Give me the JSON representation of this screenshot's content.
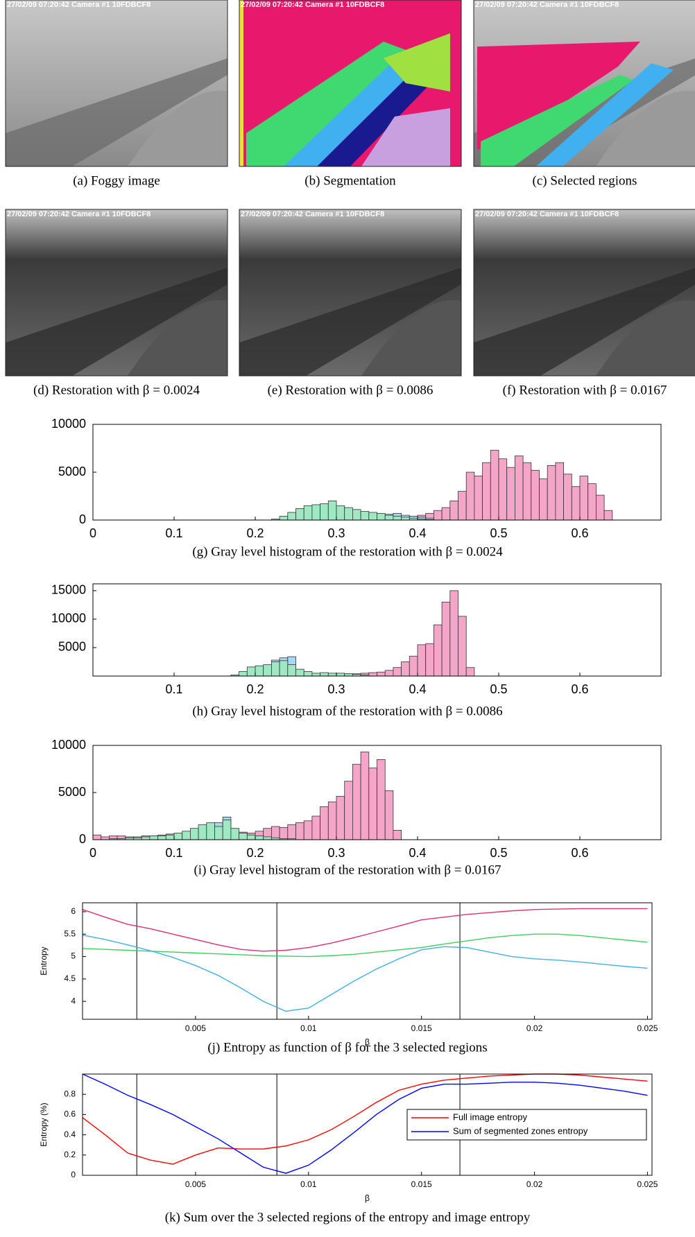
{
  "panels": [
    {
      "caption": "(a) Foggy image",
      "stamp": "27/02/09 07:20:42 Camera #1 10FDBCF8"
    },
    {
      "caption": "(b) Segmentation",
      "stamp": "27/02/09 07:20:42 Camera #1 10FDBCF8"
    },
    {
      "caption": "(c) Selected regions",
      "stamp": "27/02/09 07:20:42 Camera #1 10FDBCF8"
    },
    {
      "caption": "(d) Restoration with β = 0.0024",
      "stamp": "27/02/09 07:20:42 Camera #1 10FDBCF8"
    },
    {
      "caption": "(e) Restoration with β = 0.0086",
      "stamp": "27/02/09 07:20:42 Camera #1 10FDBCF8"
    },
    {
      "caption": "(f) Restoration with β = 0.0167",
      "stamp": "27/02/09 07:20:42 Camera #1 10FDBCF8"
    }
  ],
  "chart_data": [
    {
      "type": "histogram",
      "caption": "(g) Gray level histogram of the restoration with β = 0.0024",
      "xlim": [
        0,
        0.7
      ],
      "ylim": [
        0,
        10000
      ],
      "xticks": [
        0,
        0.1,
        0.2,
        0.3,
        0.4,
        0.5,
        0.6
      ],
      "yticks": [
        0,
        5000,
        10000
      ],
      "bins": [
        0.22,
        0.23,
        0.24,
        0.25,
        0.26,
        0.27,
        0.28,
        0.29,
        0.3,
        0.31,
        0.32,
        0.33,
        0.34,
        0.35,
        0.36,
        0.37,
        0.38,
        0.39,
        0.4,
        0.41,
        0.42,
        0.43,
        0.44,
        0.45,
        0.46,
        0.47,
        0.48,
        0.49,
        0.5,
        0.51,
        0.52,
        0.53,
        0.54,
        0.55,
        0.56,
        0.57,
        0.58,
        0.59,
        0.6,
        0.61,
        0.62,
        0.63,
        0.64
      ],
      "series": [
        {
          "color": "#f4a6c8",
          "values": [
            0,
            0,
            0,
            0,
            0,
            0,
            0,
            0,
            50,
            50,
            100,
            100,
            100,
            150,
            200,
            250,
            300,
            400,
            500,
            700,
            1000,
            1300,
            2000,
            3000,
            5000,
            4600,
            6000,
            7300,
            6400,
            5500,
            6700,
            6000,
            5200,
            4300,
            5700,
            6000,
            4800,
            3500,
            4600,
            3800,
            2600,
            1000
          ]
        },
        {
          "color": "#a8d8f0",
          "values": [
            0,
            0,
            0,
            0,
            0,
            0,
            0,
            0,
            0,
            0,
            0,
            0,
            400,
            500,
            600,
            700,
            500,
            400,
            300,
            200,
            0,
            0,
            0,
            0,
            0,
            0,
            0,
            0,
            0,
            0,
            0,
            0,
            0,
            0,
            0,
            0,
            0,
            0,
            0,
            0,
            0,
            0
          ]
        },
        {
          "color": "#9ee8c4",
          "values": [
            100,
            400,
            800,
            1200,
            1500,
            1600,
            1700,
            2000,
            1500,
            1300,
            1100,
            900,
            800,
            700,
            500,
            400,
            300,
            200,
            100,
            50,
            0,
            0,
            0,
            0,
            0,
            0,
            0,
            0,
            0,
            0,
            0,
            0,
            0,
            0,
            0,
            0,
            0,
            0,
            0,
            0,
            0,
            0
          ]
        }
      ]
    },
    {
      "type": "histogram",
      "caption": "(h) Gray level histogram of the restoration with β = 0.0086",
      "xlim": [
        0,
        0.7
      ],
      "ylim": [
        0,
        16200
      ],
      "xticks": [
        0.1,
        0.2,
        0.3,
        0.4,
        0.5,
        0.6
      ],
      "yticks": [
        5000,
        10000,
        15000
      ],
      "bins": [
        0.17,
        0.18,
        0.19,
        0.2,
        0.21,
        0.22,
        0.23,
        0.24,
        0.25,
        0.26,
        0.27,
        0.28,
        0.29,
        0.3,
        0.31,
        0.32,
        0.33,
        0.34,
        0.35,
        0.36,
        0.37,
        0.38,
        0.39,
        0.4,
        0.41,
        0.42,
        0.43,
        0.44,
        0.45,
        0.46,
        0.47
      ],
      "series": [
        {
          "color": "#f4a6c8",
          "values": [
            50,
            50,
            100,
            100,
            100,
            100,
            100,
            100,
            100,
            200,
            200,
            300,
            300,
            300,
            400,
            400,
            500,
            600,
            700,
            1000,
            1500,
            2500,
            3500,
            5500,
            5700,
            9000,
            13000,
            15000,
            10500,
            1500
          ]
        },
        {
          "color": "#a8d8f0",
          "values": [
            0,
            0,
            0,
            0,
            0,
            2800,
            3200,
            3400,
            0,
            0,
            0,
            0,
            0,
            0,
            0,
            0,
            0,
            0,
            0,
            0,
            0,
            0,
            0,
            0,
            0,
            0,
            0,
            0,
            0,
            0
          ]
        },
        {
          "color": "#9ee8c4",
          "values": [
            200,
            800,
            1600,
            1800,
            2000,
            2500,
            2700,
            2000,
            1200,
            800,
            500,
            600,
            500,
            500,
            400,
            300,
            200,
            0,
            0,
            0,
            0,
            0,
            0,
            0,
            0,
            0,
            0,
            0,
            0,
            0
          ]
        }
      ]
    },
    {
      "type": "histogram",
      "caption": "(i) Gray level histogram of the restoration with β = 0.0167",
      "xlim": [
        0,
        0.7
      ],
      "ylim": [
        0,
        10000
      ],
      "xticks": [
        0,
        0.1,
        0.2,
        0.3,
        0.4,
        0.5,
        0.6
      ],
      "yticks": [
        0,
        5000,
        10000
      ],
      "bins": [
        0,
        0.01,
        0.02,
        0.03,
        0.04,
        0.05,
        0.06,
        0.07,
        0.08,
        0.09,
        0.1,
        0.11,
        0.12,
        0.13,
        0.14,
        0.15,
        0.16,
        0.17,
        0.18,
        0.19,
        0.2,
        0.21,
        0.22,
        0.23,
        0.24,
        0.25,
        0.26,
        0.27,
        0.28,
        0.29,
        0.3,
        0.31,
        0.32,
        0.33,
        0.34,
        0.35,
        0.36,
        0.37,
        0.38
      ],
      "series": [
        {
          "color": "#f4a6c8",
          "values": [
            500,
            300,
            400,
            400,
            300,
            300,
            400,
            400,
            500,
            600,
            500,
            600,
            700,
            600,
            500,
            600,
            700,
            700,
            800,
            700,
            900,
            1200,
            1400,
            1300,
            1600,
            1800,
            2000,
            2500,
            3500,
            4000,
            4600,
            6200,
            8000,
            9300,
            7600,
            8500,
            5200,
            1000
          ]
        },
        {
          "color": "#a8d8f0",
          "values": [
            0,
            0,
            0,
            0,
            0,
            0,
            0,
            0,
            0,
            0,
            0,
            0,
            0,
            0,
            0,
            1800,
            2400,
            0,
            0,
            0,
            0,
            0,
            0,
            0,
            0,
            0,
            0,
            0,
            0,
            0,
            0,
            0,
            0,
            0,
            0,
            0,
            0,
            0
          ]
        },
        {
          "color": "#9ee8c4",
          "values": [
            0,
            0,
            100,
            100,
            200,
            200,
            300,
            400,
            400,
            500,
            700,
            900,
            1200,
            1600,
            1800,
            1400,
            2100,
            1200,
            700,
            500,
            400,
            300,
            200,
            100,
            100,
            0,
            0,
            0,
            0,
            0,
            0,
            0,
            0,
            0,
            0,
            0,
            0,
            0
          ]
        }
      ]
    },
    {
      "type": "line",
      "caption": "(j) Entropy as function of β for the 3 selected regions",
      "xlabel": "β",
      "ylabel": "Entropy",
      "xlim": [
        0,
        0.0252
      ],
      "ylim": [
        3.6,
        6.2
      ],
      "xticks": [
        0.005,
        0.01,
        0.015,
        0.02,
        0.025
      ],
      "yticks": [
        4,
        4.5,
        5,
        5.5,
        6
      ],
      "vlines": [
        0.0024,
        0.0086,
        0.0167
      ],
      "x": [
        0,
        0.001,
        0.002,
        0.003,
        0.004,
        0.005,
        0.006,
        0.007,
        0.008,
        0.009,
        0.01,
        0.011,
        0.012,
        0.013,
        0.014,
        0.015,
        0.016,
        0.017,
        0.018,
        0.019,
        0.02,
        0.021,
        0.022,
        0.023,
        0.024,
        0.025
      ],
      "series": [
        {
          "color": "#e0306a",
          "values": [
            6.05,
            5.88,
            5.72,
            5.62,
            5.5,
            5.38,
            5.26,
            5.16,
            5.12,
            5.14,
            5.2,
            5.3,
            5.42,
            5.55,
            5.68,
            5.82,
            5.88,
            5.94,
            5.98,
            6.02,
            6.05,
            6.06,
            6.07,
            6.07,
            6.07,
            6.07
          ]
        },
        {
          "color": "#3dd060",
          "values": [
            5.18,
            5.16,
            5.14,
            5.12,
            5.1,
            5.08,
            5.06,
            5.04,
            5.02,
            5.01,
            5.0,
            5.02,
            5.05,
            5.1,
            5.15,
            5.2,
            5.28,
            5.35,
            5.42,
            5.47,
            5.5,
            5.5,
            5.47,
            5.42,
            5.37,
            5.32
          ]
        },
        {
          "color": "#40b0e8",
          "values": [
            5.48,
            5.38,
            5.26,
            5.13,
            4.98,
            4.8,
            4.58,
            4.3,
            4.0,
            3.78,
            3.85,
            4.15,
            4.45,
            4.72,
            4.95,
            5.15,
            5.22,
            5.2,
            5.1,
            5.0,
            4.95,
            4.92,
            4.88,
            4.83,
            4.78,
            4.74
          ]
        }
      ]
    },
    {
      "type": "line",
      "caption": "(k) Sum over the 3 selected regions of the entropy and image entropy",
      "xlabel": "β",
      "ylabel": "Entropy (%)",
      "legend": "center right",
      "xlim": [
        0,
        0.0252
      ],
      "ylim": [
        0,
        1
      ],
      "xticks": [
        0.005,
        0.01,
        0.015,
        0.02,
        0.025
      ],
      "yticks": [
        0,
        0.2,
        0.4,
        0.6,
        0.8
      ],
      "vlines": [
        0.0024,
        0.0086,
        0.0167
      ],
      "x": [
        0,
        0.001,
        0.002,
        0.003,
        0.004,
        0.005,
        0.006,
        0.007,
        0.008,
        0.009,
        0.01,
        0.011,
        0.012,
        0.013,
        0.014,
        0.015,
        0.016,
        0.017,
        0.018,
        0.019,
        0.02,
        0.021,
        0.022,
        0.023,
        0.024,
        0.025
      ],
      "series": [
        {
          "name": "Full image entropy",
          "color": "#ff0000",
          "values": [
            0.57,
            0.4,
            0.22,
            0.15,
            0.11,
            0.2,
            0.27,
            0.26,
            0.26,
            0.29,
            0.35,
            0.45,
            0.58,
            0.72,
            0.84,
            0.9,
            0.94,
            0.96,
            0.98,
            0.99,
            1.0,
            1.0,
            0.99,
            0.97,
            0.95,
            0.93
          ]
        },
        {
          "name": "Sum of segmented zones entropy",
          "color": "#0000ff",
          "values": [
            1.0,
            0.9,
            0.79,
            0.7,
            0.6,
            0.48,
            0.36,
            0.22,
            0.08,
            0.02,
            0.1,
            0.25,
            0.42,
            0.6,
            0.75,
            0.86,
            0.9,
            0.9,
            0.91,
            0.92,
            0.92,
            0.91,
            0.89,
            0.86,
            0.83,
            0.79
          ]
        }
      ]
    }
  ]
}
